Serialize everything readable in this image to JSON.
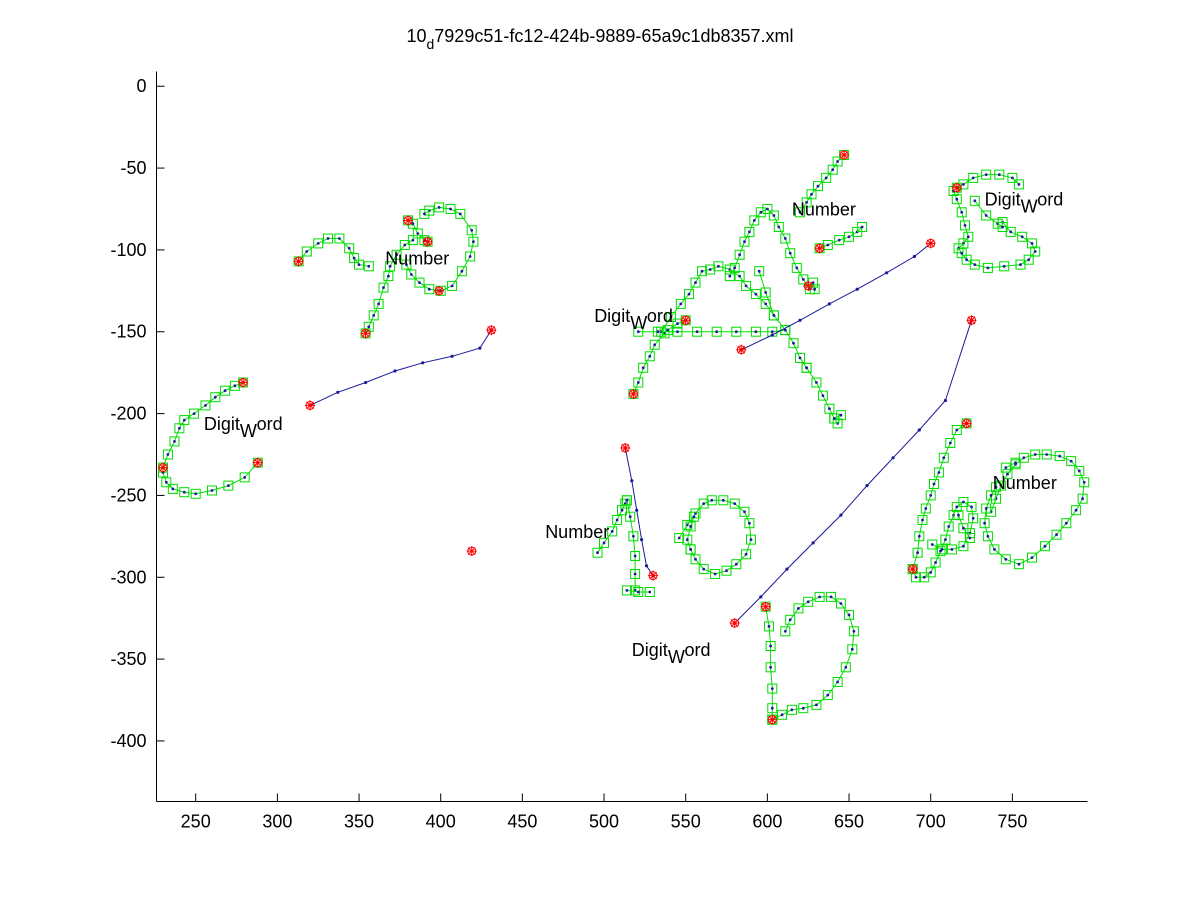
{
  "chart_data": {
    "type": "scatter",
    "title_main": "10",
    "title_sub": "d",
    "title_rest": "7929c51-fc12-424b-9889-65a9c1db8357.xml",
    "xlim": [
      226,
      796
    ],
    "ylim": [
      -437,
      9
    ],
    "x_ticks": [
      250,
      300,
      350,
      400,
      450,
      500,
      550,
      600,
      650,
      700,
      750
    ],
    "y_ticks": [
      0,
      -50,
      -100,
      -150,
      -200,
      -250,
      -300,
      -350,
      -400
    ],
    "grid": false,
    "colors": {
      "stroke_line": "#00dd00",
      "connector_line": "#1a1a9a",
      "point": "#1a1a9a",
      "marker_box": "#00dd00",
      "endpoint": "#ff0000"
    },
    "annotations": [
      {
        "main": "Number",
        "sub": "",
        "rest": "",
        "x": 366,
        "y": -109
      },
      {
        "main": "Digit",
        "sub": "W",
        "rest": "ord",
        "x": 255,
        "y": -210
      },
      {
        "main": "Digit",
        "sub": "W",
        "rest": "ord",
        "x": 494,
        "y": -144
      },
      {
        "main": "Number",
        "sub": "",
        "rest": "",
        "x": 615,
        "y": -79
      },
      {
        "main": "Digit",
        "sub": "W",
        "rest": "ord",
        "x": 733,
        "y": -73
      },
      {
        "main": "Number",
        "sub": "",
        "rest": "",
        "x": 464,
        "y": -276
      },
      {
        "main": "Digit",
        "sub": "W",
        "rest": "ord",
        "x": 517,
        "y": -348
      },
      {
        "main": "Number",
        "sub": "",
        "rest": "",
        "x": 738,
        "y": -246
      }
    ],
    "strokes": [
      [
        [
          230,
          -233
        ],
        [
          233,
          -225
        ],
        [
          237,
          -217
        ],
        [
          240,
          -209
        ],
        [
          243,
          -204
        ],
        [
          249,
          -200
        ],
        [
          256,
          -195
        ],
        [
          262,
          -190
        ],
        [
          268,
          -186
        ],
        [
          274,
          -183
        ],
        [
          279,
          -181
        ]
      ],
      [
        [
          230,
          -236
        ],
        [
          232,
          -242
        ],
        [
          236,
          -246
        ],
        [
          243,
          -248
        ],
        [
          250,
          -249
        ],
        [
          260,
          -247
        ],
        [
          270,
          -244
        ],
        [
          280,
          -239
        ],
        [
          288,
          -230
        ]
      ],
      [
        [
          313,
          -107
        ],
        [
          318,
          -101
        ],
        [
          325,
          -96
        ],
        [
          331,
          -93
        ],
        [
          338,
          -93
        ],
        [
          344,
          -99
        ],
        [
          347,
          -105
        ],
        [
          350,
          -109
        ],
        [
          356,
          -110
        ]
      ],
      [
        [
          354,
          -151
        ],
        [
          356,
          -147
        ],
        [
          359,
          -140
        ],
        [
          362,
          -133
        ],
        [
          365,
          -123
        ],
        [
          368,
          -116
        ],
        [
          369,
          -110
        ],
        [
          373,
          -103
        ],
        [
          378,
          -97
        ],
        [
          383,
          -94
        ]
      ],
      [
        [
          380,
          -82
        ],
        [
          383,
          -84
        ],
        [
          386,
          -90
        ],
        [
          390,
          -94
        ],
        [
          392,
          -95
        ]
      ],
      [
        [
          379,
          -109
        ],
        [
          382,
          -115
        ],
        [
          387,
          -120
        ],
        [
          393,
          -124
        ],
        [
          400,
          -125
        ],
        [
          407,
          -122
        ],
        [
          413,
          -113
        ],
        [
          418,
          -104
        ],
        [
          420,
          -95
        ],
        [
          419,
          -88
        ],
        [
          412,
          -78
        ],
        [
          406,
          -75
        ],
        [
          399,
          -74
        ],
        [
          393,
          -76
        ],
        [
          390,
          -78
        ]
      ],
      [
        [
          518,
          -188
        ],
        [
          521,
          -181
        ],
        [
          524,
          -172
        ],
        [
          528,
          -165
        ],
        [
          531,
          -158
        ],
        [
          537,
          -151
        ],
        [
          539,
          -149
        ],
        [
          545,
          -145
        ],
        [
          550,
          -143
        ]
      ],
      [
        [
          535,
          -150
        ],
        [
          541,
          -141
        ],
        [
          547,
          -133
        ],
        [
          552,
          -127
        ],
        [
          556,
          -120
        ],
        [
          560,
          -113
        ],
        [
          565,
          -112
        ],
        [
          570,
          -110
        ],
        [
          577,
          -112
        ],
        [
          583,
          -116
        ],
        [
          587,
          -122
        ],
        [
          593,
          -127
        ],
        [
          599,
          -133
        ],
        [
          604,
          -140
        ],
        [
          611,
          -149
        ],
        [
          616,
          -157
        ],
        [
          620,
          -166
        ],
        [
          624,
          -172
        ]
      ],
      [
        [
          595,
          -113
        ],
        [
          599,
          -126
        ],
        [
          604,
          -140
        ]
      ],
      [
        [
          521,
          -150
        ],
        [
          533,
          -150
        ],
        [
          545,
          -150
        ],
        [
          557,
          -150
        ],
        [
          569,
          -150
        ],
        [
          581,
          -150
        ],
        [
          593,
          -150
        ],
        [
          603,
          -150
        ],
        [
          611,
          -149
        ]
      ],
      [
        [
          624,
          -172
        ],
        [
          630,
          -181
        ],
        [
          634,
          -189
        ],
        [
          638,
          -197
        ],
        [
          641,
          -203
        ],
        [
          643,
          -206
        ]
      ],
      [
        [
          641,
          -203
        ],
        [
          645,
          -201
        ]
      ],
      [
        [
          577,
          -116
        ],
        [
          580,
          -111
        ],
        [
          583,
          -103
        ],
        [
          586,
          -95
        ],
        [
          589,
          -89
        ],
        [
          592,
          -82
        ],
        [
          596,
          -77
        ],
        [
          600,
          -75
        ],
        [
          604,
          -79
        ],
        [
          607,
          -86
        ],
        [
          611,
          -93
        ],
        [
          614,
          -102
        ],
        [
          618,
          -111
        ],
        [
          622,
          -118
        ],
        [
          626,
          -124
        ],
        [
          629,
          -124
        ],
        [
          628,
          -120
        ]
      ],
      [
        [
          620,
          -77
        ],
        [
          624,
          -71
        ],
        [
          627,
          -66
        ],
        [
          631,
          -61
        ],
        [
          636,
          -56
        ],
        [
          640,
          -51
        ],
        [
          643,
          -46
        ],
        [
          647,
          -42
        ]
      ],
      [
        [
          632,
          -99
        ],
        [
          637,
          -97
        ],
        [
          644,
          -94
        ],
        [
          650,
          -92
        ],
        [
          655,
          -89
        ],
        [
          658,
          -86
        ]
      ],
      [
        [
          716,
          -62
        ],
        [
          720,
          -60
        ],
        [
          726,
          -56
        ],
        [
          734,
          -54
        ],
        [
          742,
          -54
        ],
        [
          750,
          -56
        ],
        [
          754,
          -60
        ]
      ],
      [
        [
          714,
          -64
        ],
        [
          716,
          -69
        ],
        [
          719,
          -77
        ],
        [
          721,
          -85
        ],
        [
          723,
          -92
        ],
        [
          720,
          -96
        ],
        [
          717,
          -99
        ],
        [
          719,
          -102
        ],
        [
          722,
          -106
        ],
        [
          727,
          -109
        ],
        [
          735,
          -111
        ],
        [
          745,
          -110
        ],
        [
          755,
          -109
        ],
        [
          760,
          -106
        ],
        [
          764,
          -101
        ],
        [
          762,
          -96
        ],
        [
          756,
          -92
        ],
        [
          749,
          -89
        ],
        [
          744,
          -83
        ]
      ],
      [
        [
          727,
          -70
        ],
        [
          734,
          -79
        ],
        [
          741,
          -84
        ],
        [
          744,
          -86
        ]
      ],
      [
        [
          496,
          -285
        ],
        [
          500,
          -279
        ],
        [
          505,
          -272
        ],
        [
          508,
          -265
        ],
        [
          511,
          -259
        ],
        [
          513,
          -255
        ],
        [
          514,
          -253
        ]
      ],
      [
        [
          514,
          -253
        ],
        [
          516,
          -263
        ],
        [
          518,
          -275
        ],
        [
          519,
          -287
        ],
        [
          519,
          -298
        ],
        [
          519,
          -308
        ]
      ],
      [
        [
          514,
          -308
        ],
        [
          521,
          -309
        ],
        [
          528,
          -309
        ]
      ],
      [
        [
          546,
          -276
        ],
        [
          551,
          -268
        ],
        [
          556,
          -261
        ],
        [
          561,
          -255
        ],
        [
          566,
          -253
        ],
        [
          573,
          -253
        ],
        [
          580,
          -255
        ],
        [
          586,
          -260
        ],
        [
          589,
          -267
        ],
        [
          590,
          -277
        ],
        [
          587,
          -286
        ],
        [
          581,
          -292
        ],
        [
          575,
          -296
        ],
        [
          568,
          -298
        ],
        [
          561,
          -295
        ],
        [
          556,
          -289
        ],
        [
          553,
          -283
        ]
      ],
      [
        [
          553,
          -283
        ],
        [
          551,
          -277
        ],
        [
          553,
          -269
        ],
        [
          555,
          -263
        ]
      ],
      [
        [
          599,
          -318
        ],
        [
          601,
          -330
        ],
        [
          602,
          -342
        ],
        [
          602,
          -355
        ],
        [
          603,
          -368
        ],
        [
          603,
          -380
        ],
        [
          603,
          -387
        ]
      ],
      [
        [
          603,
          -387
        ],
        [
          609,
          -384
        ],
        [
          615,
          -381
        ],
        [
          622,
          -380
        ],
        [
          630,
          -378
        ],
        [
          637,
          -372
        ],
        [
          643,
          -364
        ],
        [
          648,
          -355
        ],
        [
          652,
          -344
        ],
        [
          653,
          -333
        ],
        [
          650,
          -323
        ],
        [
          645,
          -316
        ],
        [
          639,
          -312
        ],
        [
          632,
          -312
        ],
        [
          625,
          -315
        ],
        [
          619,
          -319
        ],
        [
          614,
          -326
        ],
        [
          611,
          -333
        ]
      ],
      [
        [
          689,
          -295
        ],
        [
          692,
          -285
        ],
        [
          693,
          -275
        ],
        [
          695,
          -265
        ],
        [
          697,
          -258
        ],
        [
          700,
          -250
        ],
        [
          702,
          -243
        ],
        [
          705,
          -236
        ],
        [
          708,
          -227
        ],
        [
          712,
          -218
        ],
        [
          716,
          -210
        ],
        [
          722,
          -206
        ]
      ],
      [
        [
          689,
          -295
        ],
        [
          691,
          -300
        ],
        [
          696,
          -300
        ],
        [
          700,
          -297
        ],
        [
          703,
          -291
        ],
        [
          706,
          -284
        ],
        [
          709,
          -277
        ],
        [
          711,
          -269
        ],
        [
          714,
          -262
        ],
        [
          716,
          -257
        ],
        [
          720,
          -254
        ],
        [
          725,
          -257
        ],
        [
          726,
          -264
        ],
        [
          724,
          -273
        ],
        [
          720,
          -281
        ],
        [
          713,
          -283
        ],
        [
          707,
          -283
        ],
        [
          701,
          -280
        ]
      ],
      [
        [
          717,
          -262
        ],
        [
          720,
          -270
        ],
        [
          724,
          -276
        ]
      ],
      [
        [
          737,
          -260
        ],
        [
          740,
          -252
        ],
        [
          743,
          -244
        ],
        [
          747,
          -237
        ],
        [
          752,
          -231
        ],
        [
          757,
          -227
        ],
        [
          764,
          -225
        ],
        [
          771,
          -225
        ],
        [
          779,
          -226
        ],
        [
          786,
          -229
        ],
        [
          791,
          -235
        ],
        [
          794,
          -242
        ],
        [
          793,
          -252
        ],
        [
          789,
          -259
        ],
        [
          783,
          -267
        ],
        [
          777,
          -274
        ],
        [
          770,
          -281
        ],
        [
          762,
          -288
        ],
        [
          754,
          -292
        ],
        [
          746,
          -289
        ],
        [
          739,
          -283
        ],
        [
          735,
          -275
        ],
        [
          733,
          -267
        ],
        [
          734,
          -258
        ],
        [
          737,
          -250
        ],
        [
          740,
          -245
        ]
      ],
      [
        [
          746,
          -233
        ],
        [
          752,
          -230
        ]
      ]
    ],
    "connectors": [
      [
        [
          320,
          -195
        ],
        [
          337,
          -187
        ],
        [
          354,
          -181
        ],
        [
          372,
          -174
        ],
        [
          389,
          -169
        ],
        [
          407,
          -165
        ],
        [
          424,
          -160
        ],
        [
          431,
          -149
        ]
      ],
      [
        [
          513,
          -221
        ],
        [
          517,
          -241
        ],
        [
          520,
          -259
        ],
        [
          523,
          -277
        ],
        [
          526,
          -293
        ],
        [
          530,
          -299
        ]
      ],
      [
        [
          584,
          -161
        ],
        [
          603,
          -152
        ],
        [
          620,
          -143
        ],
        [
          638,
          -133
        ],
        [
          655,
          -124
        ],
        [
          673,
          -114
        ],
        [
          690,
          -104
        ],
        [
          700,
          -96
        ]
      ],
      [
        [
          580,
          -328
        ],
        [
          596,
          -312
        ],
        [
          612,
          -295
        ],
        [
          628,
          -279
        ],
        [
          645,
          -262
        ],
        [
          661,
          -244
        ],
        [
          677,
          -227
        ],
        [
          693,
          -210
        ],
        [
          709,
          -192
        ],
        [
          725,
          -143
        ]
      ]
    ],
    "endpoints": [
      [
        320,
        -195
      ],
      [
        431,
        -149
      ],
      [
        513,
        -221
      ],
      [
        530,
        -299
      ],
      [
        584,
        -161
      ],
      [
        700,
        -96
      ],
      [
        580,
        -328
      ],
      [
        725,
        -143
      ],
      [
        230,
        -233
      ],
      [
        279,
        -181
      ],
      [
        288,
        -230
      ],
      [
        313,
        -107
      ],
      [
        354,
        -151
      ],
      [
        380,
        -82
      ],
      [
        392,
        -95
      ],
      [
        399,
        -125
      ],
      [
        419,
        -284
      ],
      [
        518,
        -188
      ],
      [
        550,
        -143
      ],
      [
        625,
        -122
      ],
      [
        647,
        -42
      ],
      [
        632,
        -99
      ],
      [
        716,
        -62
      ],
      [
        722,
        -206
      ],
      [
        689,
        -295
      ],
      [
        599,
        -318
      ],
      [
        603,
        -387
      ]
    ]
  }
}
